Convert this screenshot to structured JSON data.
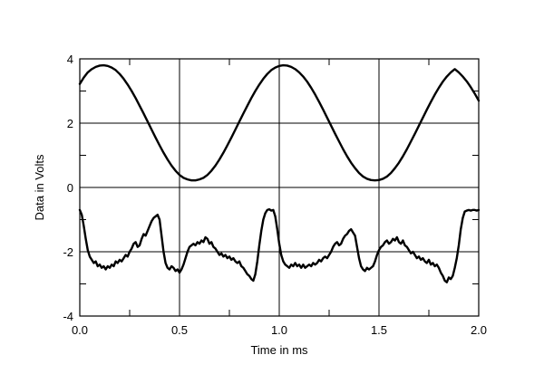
{
  "chart_data": {
    "type": "line",
    "title": "",
    "xlabel": "Time in ms",
    "ylabel": "Data in Volts",
    "xlim": [
      0.0,
      2.0
    ],
    "ylim": [
      -4,
      4
    ],
    "x_ticks": [
      {
        "value": 0.0,
        "label": "0.0"
      },
      {
        "value": 0.5,
        "label": "0.5"
      },
      {
        "value": 1.0,
        "label": "1.0"
      },
      {
        "value": 1.5,
        "label": "1.5"
      },
      {
        "value": 2.0,
        "label": "2.0"
      }
    ],
    "y_ticks": [
      {
        "value": 4,
        "label": "4"
      },
      {
        "value": 2,
        "label": "2"
      },
      {
        "value": 0,
        "label": "0"
      },
      {
        "value": -2,
        "label": "-2"
      },
      {
        "value": -4,
        "label": "-4"
      }
    ],
    "x_minor_step": 0.25,
    "y_minor_step": 1,
    "grid": true,
    "line_color": "#000000",
    "series": [
      {
        "points": [
          [
            0.0,
            3.22
          ],
          [
            0.02,
            3.42
          ],
          [
            0.04,
            3.58
          ],
          [
            0.06,
            3.68
          ],
          [
            0.08,
            3.75
          ],
          [
            0.1,
            3.79
          ],
          [
            0.12,
            3.8
          ],
          [
            0.14,
            3.78
          ],
          [
            0.16,
            3.73
          ],
          [
            0.18,
            3.65
          ],
          [
            0.2,
            3.53
          ],
          [
            0.22,
            3.38
          ],
          [
            0.24,
            3.2
          ],
          [
            0.26,
            3.0
          ],
          [
            0.28,
            2.78
          ],
          [
            0.3,
            2.54
          ],
          [
            0.32,
            2.3
          ],
          [
            0.34,
            2.05
          ],
          [
            0.36,
            1.8
          ],
          [
            0.38,
            1.55
          ],
          [
            0.4,
            1.31
          ],
          [
            0.42,
            1.08
          ],
          [
            0.44,
            0.87
          ],
          [
            0.46,
            0.68
          ],
          [
            0.48,
            0.52
          ],
          [
            0.5,
            0.39
          ],
          [
            0.52,
            0.3
          ],
          [
            0.54,
            0.25
          ],
          [
            0.56,
            0.22
          ],
          [
            0.58,
            0.22
          ],
          [
            0.6,
            0.25
          ],
          [
            0.62,
            0.3
          ],
          [
            0.64,
            0.39
          ],
          [
            0.66,
            0.52
          ],
          [
            0.68,
            0.68
          ],
          [
            0.7,
            0.87
          ],
          [
            0.72,
            1.08
          ],
          [
            0.74,
            1.31
          ],
          [
            0.76,
            1.55
          ],
          [
            0.78,
            1.8
          ],
          [
            0.8,
            2.05
          ],
          [
            0.82,
            2.3
          ],
          [
            0.84,
            2.54
          ],
          [
            0.86,
            2.78
          ],
          [
            0.88,
            3.0
          ],
          [
            0.9,
            3.2
          ],
          [
            0.92,
            3.38
          ],
          [
            0.94,
            3.53
          ],
          [
            0.96,
            3.65
          ],
          [
            0.98,
            3.73
          ],
          [
            1.0,
            3.78
          ],
          [
            1.02,
            3.8
          ],
          [
            1.04,
            3.79
          ],
          [
            1.06,
            3.75
          ],
          [
            1.08,
            3.68
          ],
          [
            1.1,
            3.58
          ],
          [
            1.12,
            3.45
          ],
          [
            1.14,
            3.29
          ],
          [
            1.16,
            3.1
          ],
          [
            1.18,
            2.89
          ],
          [
            1.2,
            2.66
          ],
          [
            1.22,
            2.42
          ],
          [
            1.24,
            2.17
          ],
          [
            1.26,
            1.92
          ],
          [
            1.28,
            1.67
          ],
          [
            1.3,
            1.43
          ],
          [
            1.32,
            1.19
          ],
          [
            1.34,
            0.97
          ],
          [
            1.36,
            0.77
          ],
          [
            1.38,
            0.6
          ],
          [
            1.4,
            0.45
          ],
          [
            1.42,
            0.34
          ],
          [
            1.44,
            0.27
          ],
          [
            1.46,
            0.23
          ],
          [
            1.48,
            0.22
          ],
          [
            1.5,
            0.23
          ],
          [
            1.52,
            0.27
          ],
          [
            1.54,
            0.34
          ],
          [
            1.56,
            0.45
          ],
          [
            1.58,
            0.6
          ],
          [
            1.6,
            0.77
          ],
          [
            1.62,
            0.97
          ],
          [
            1.64,
            1.19
          ],
          [
            1.66,
            1.43
          ],
          [
            1.68,
            1.67
          ],
          [
            1.7,
            1.92
          ],
          [
            1.72,
            2.17
          ],
          [
            1.74,
            2.42
          ],
          [
            1.76,
            2.66
          ],
          [
            1.78,
            2.89
          ],
          [
            1.8,
            3.1
          ],
          [
            1.82,
            3.29
          ],
          [
            1.84,
            3.45
          ],
          [
            1.86,
            3.58
          ],
          [
            1.88,
            3.68
          ],
          [
            1.9,
            3.58
          ],
          [
            1.92,
            3.45
          ],
          [
            1.94,
            3.3
          ],
          [
            1.96,
            3.12
          ],
          [
            1.98,
            2.92
          ],
          [
            2.0,
            2.7
          ]
        ]
      },
      {
        "points": [
          [
            0.0,
            -0.7
          ],
          [
            0.01,
            -0.85
          ],
          [
            0.02,
            -1.2
          ],
          [
            0.03,
            -1.6
          ],
          [
            0.04,
            -1.95
          ],
          [
            0.05,
            -2.15
          ],
          [
            0.06,
            -2.25
          ],
          [
            0.07,
            -2.35
          ],
          [
            0.08,
            -2.3
          ],
          [
            0.09,
            -2.45
          ],
          [
            0.1,
            -2.4
          ],
          [
            0.11,
            -2.5
          ],
          [
            0.12,
            -2.45
          ],
          [
            0.13,
            -2.55
          ],
          [
            0.14,
            -2.45
          ],
          [
            0.15,
            -2.5
          ],
          [
            0.16,
            -2.4
          ],
          [
            0.17,
            -2.45
          ],
          [
            0.18,
            -2.3
          ],
          [
            0.19,
            -2.35
          ],
          [
            0.2,
            -2.25
          ],
          [
            0.21,
            -2.3
          ],
          [
            0.22,
            -2.2
          ],
          [
            0.23,
            -2.1
          ],
          [
            0.24,
            -2.15
          ],
          [
            0.25,
            -2.0
          ],
          [
            0.26,
            -1.9
          ],
          [
            0.27,
            -1.75
          ],
          [
            0.28,
            -1.7
          ],
          [
            0.29,
            -1.85
          ],
          [
            0.3,
            -1.8
          ],
          [
            0.31,
            -1.6
          ],
          [
            0.32,
            -1.45
          ],
          [
            0.33,
            -1.5
          ],
          [
            0.34,
            -1.35
          ],
          [
            0.35,
            -1.2
          ],
          [
            0.36,
            -1.05
          ],
          [
            0.37,
            -0.95
          ],
          [
            0.38,
            -0.9
          ],
          [
            0.39,
            -0.85
          ],
          [
            0.4,
            -1.0
          ],
          [
            0.41,
            -1.5
          ],
          [
            0.42,
            -2.0
          ],
          [
            0.43,
            -2.35
          ],
          [
            0.44,
            -2.5
          ],
          [
            0.45,
            -2.55
          ],
          [
            0.46,
            -2.45
          ],
          [
            0.47,
            -2.5
          ],
          [
            0.48,
            -2.6
          ],
          [
            0.49,
            -2.55
          ],
          [
            0.5,
            -2.65
          ],
          [
            0.51,
            -2.55
          ],
          [
            0.52,
            -2.4
          ],
          [
            0.53,
            -2.2
          ],
          [
            0.54,
            -2.0
          ],
          [
            0.55,
            -1.85
          ],
          [
            0.56,
            -1.8
          ],
          [
            0.57,
            -1.75
          ],
          [
            0.58,
            -1.8
          ],
          [
            0.59,
            -1.7
          ],
          [
            0.6,
            -1.75
          ],
          [
            0.61,
            -1.65
          ],
          [
            0.62,
            -1.7
          ],
          [
            0.63,
            -1.55
          ],
          [
            0.64,
            -1.6
          ],
          [
            0.65,
            -1.75
          ],
          [
            0.66,
            -1.7
          ],
          [
            0.67,
            -1.85
          ],
          [
            0.68,
            -1.9
          ],
          [
            0.69,
            -2.0
          ],
          [
            0.7,
            -2.1
          ],
          [
            0.71,
            -2.05
          ],
          [
            0.72,
            -2.15
          ],
          [
            0.73,
            -2.1
          ],
          [
            0.74,
            -2.2
          ],
          [
            0.75,
            -2.15
          ],
          [
            0.76,
            -2.25
          ],
          [
            0.77,
            -2.2
          ],
          [
            0.78,
            -2.3
          ],
          [
            0.79,
            -2.35
          ],
          [
            0.8,
            -2.3
          ],
          [
            0.81,
            -2.45
          ],
          [
            0.82,
            -2.5
          ],
          [
            0.83,
            -2.6
          ],
          [
            0.84,
            -2.7
          ],
          [
            0.85,
            -2.75
          ],
          [
            0.86,
            -2.85
          ],
          [
            0.87,
            -2.9
          ],
          [
            0.88,
            -2.7
          ],
          [
            0.89,
            -2.3
          ],
          [
            0.9,
            -1.8
          ],
          [
            0.91,
            -1.35
          ],
          [
            0.92,
            -1.0
          ],
          [
            0.93,
            -0.8
          ],
          [
            0.94,
            -0.7
          ],
          [
            0.95,
            -0.68
          ],
          [
            0.96,
            -0.72
          ],
          [
            0.97,
            -0.7
          ],
          [
            0.98,
            -0.9
          ],
          [
            0.99,
            -1.3
          ],
          [
            1.0,
            -1.75
          ],
          [
            1.01,
            -2.1
          ],
          [
            1.02,
            -2.3
          ],
          [
            1.03,
            -2.4
          ],
          [
            1.04,
            -2.45
          ],
          [
            1.05,
            -2.5
          ],
          [
            1.06,
            -2.4
          ],
          [
            1.07,
            -2.45
          ],
          [
            1.08,
            -2.35
          ],
          [
            1.09,
            -2.45
          ],
          [
            1.1,
            -2.4
          ],
          [
            1.11,
            -2.5
          ],
          [
            1.12,
            -2.4
          ],
          [
            1.13,
            -2.5
          ],
          [
            1.14,
            -2.45
          ],
          [
            1.15,
            -2.4
          ],
          [
            1.16,
            -2.45
          ],
          [
            1.17,
            -2.35
          ],
          [
            1.18,
            -2.4
          ],
          [
            1.19,
            -2.35
          ],
          [
            1.2,
            -2.25
          ],
          [
            1.21,
            -2.3
          ],
          [
            1.22,
            -2.2
          ],
          [
            1.23,
            -2.15
          ],
          [
            1.24,
            -2.2
          ],
          [
            1.25,
            -2.1
          ],
          [
            1.26,
            -2.0
          ],
          [
            1.27,
            -1.85
          ],
          [
            1.28,
            -1.75
          ],
          [
            1.29,
            -1.7
          ],
          [
            1.3,
            -1.8
          ],
          [
            1.31,
            -1.75
          ],
          [
            1.32,
            -1.6
          ],
          [
            1.33,
            -1.5
          ],
          [
            1.34,
            -1.45
          ],
          [
            1.35,
            -1.35
          ],
          [
            1.36,
            -1.3
          ],
          [
            1.37,
            -1.4
          ],
          [
            1.38,
            -1.5
          ],
          [
            1.39,
            -1.85
          ],
          [
            1.4,
            -2.2
          ],
          [
            1.41,
            -2.45
          ],
          [
            1.42,
            -2.55
          ],
          [
            1.43,
            -2.6
          ],
          [
            1.44,
            -2.5
          ],
          [
            1.45,
            -2.55
          ],
          [
            1.46,
            -2.5
          ],
          [
            1.47,
            -2.45
          ],
          [
            1.48,
            -2.3
          ],
          [
            1.49,
            -2.1
          ],
          [
            1.5,
            -1.95
          ],
          [
            1.51,
            -1.85
          ],
          [
            1.52,
            -1.8
          ],
          [
            1.53,
            -1.7
          ],
          [
            1.54,
            -1.65
          ],
          [
            1.55,
            -1.75
          ],
          [
            1.56,
            -1.7
          ],
          [
            1.57,
            -1.6
          ],
          [
            1.58,
            -1.65
          ],
          [
            1.59,
            -1.55
          ],
          [
            1.6,
            -1.7
          ],
          [
            1.61,
            -1.75
          ],
          [
            1.62,
            -1.65
          ],
          [
            1.63,
            -1.8
          ],
          [
            1.64,
            -1.85
          ],
          [
            1.65,
            -1.95
          ],
          [
            1.66,
            -2.05
          ],
          [
            1.67,
            -2.0
          ],
          [
            1.68,
            -2.1
          ],
          [
            1.69,
            -2.2
          ],
          [
            1.7,
            -2.15
          ],
          [
            1.71,
            -2.25
          ],
          [
            1.72,
            -2.2
          ],
          [
            1.73,
            -2.3
          ],
          [
            1.74,
            -2.35
          ],
          [
            1.75,
            -2.25
          ],
          [
            1.76,
            -2.4
          ],
          [
            1.77,
            -2.35
          ],
          [
            1.78,
            -2.45
          ],
          [
            1.79,
            -2.4
          ],
          [
            1.8,
            -2.5
          ],
          [
            1.81,
            -2.65
          ],
          [
            1.82,
            -2.75
          ],
          [
            1.83,
            -2.9
          ],
          [
            1.84,
            -2.95
          ],
          [
            1.85,
            -2.8
          ],
          [
            1.86,
            -2.85
          ],
          [
            1.87,
            -2.75
          ],
          [
            1.88,
            -2.5
          ],
          [
            1.89,
            -2.2
          ],
          [
            1.9,
            -1.8
          ],
          [
            1.91,
            -1.3
          ],
          [
            1.92,
            -0.95
          ],
          [
            1.93,
            -0.75
          ],
          [
            1.94,
            -0.72
          ],
          [
            1.95,
            -0.7
          ],
          [
            1.96,
            -0.72
          ],
          [
            1.97,
            -0.7
          ],
          [
            1.98,
            -0.7
          ],
          [
            1.99,
            -0.72
          ],
          [
            2.0,
            -0.7
          ]
        ]
      }
    ]
  }
}
